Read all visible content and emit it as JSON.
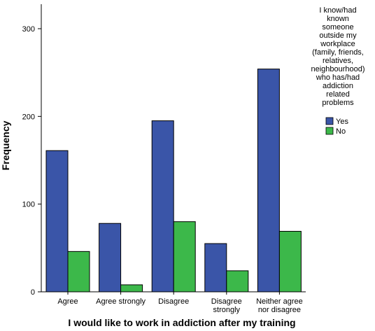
{
  "chart_data": {
    "type": "bar",
    "title": "",
    "xlabel": "I would like to work in addiction after my training",
    "ylabel": "Frequency",
    "ylim": [
      0,
      340
    ],
    "yticks": [
      0,
      100,
      200,
      300
    ],
    "grid": false,
    "legend_position": "top-right",
    "legend_title_lines": [
      "I know/had",
      "known",
      "someone",
      "outside my",
      "workplace",
      "(family, friends,",
      "relatives,",
      "neighbourhood)",
      "who has/had",
      "addiction",
      "related",
      "problems"
    ],
    "categories": [
      [
        "Agree"
      ],
      [
        "Agree strongly"
      ],
      [
        "Disagree"
      ],
      [
        "Disagree",
        "strongly"
      ],
      [
        "Neither agree",
        "nor disagree"
      ]
    ],
    "series": [
      {
        "name": "Yes",
        "color": "#3a55a8",
        "values": [
          161,
          78,
          195,
          55,
          254
        ]
      },
      {
        "name": "No",
        "color": "#3cb84a",
        "values": [
          46,
          8,
          80,
          24,
          69
        ]
      }
    ]
  }
}
